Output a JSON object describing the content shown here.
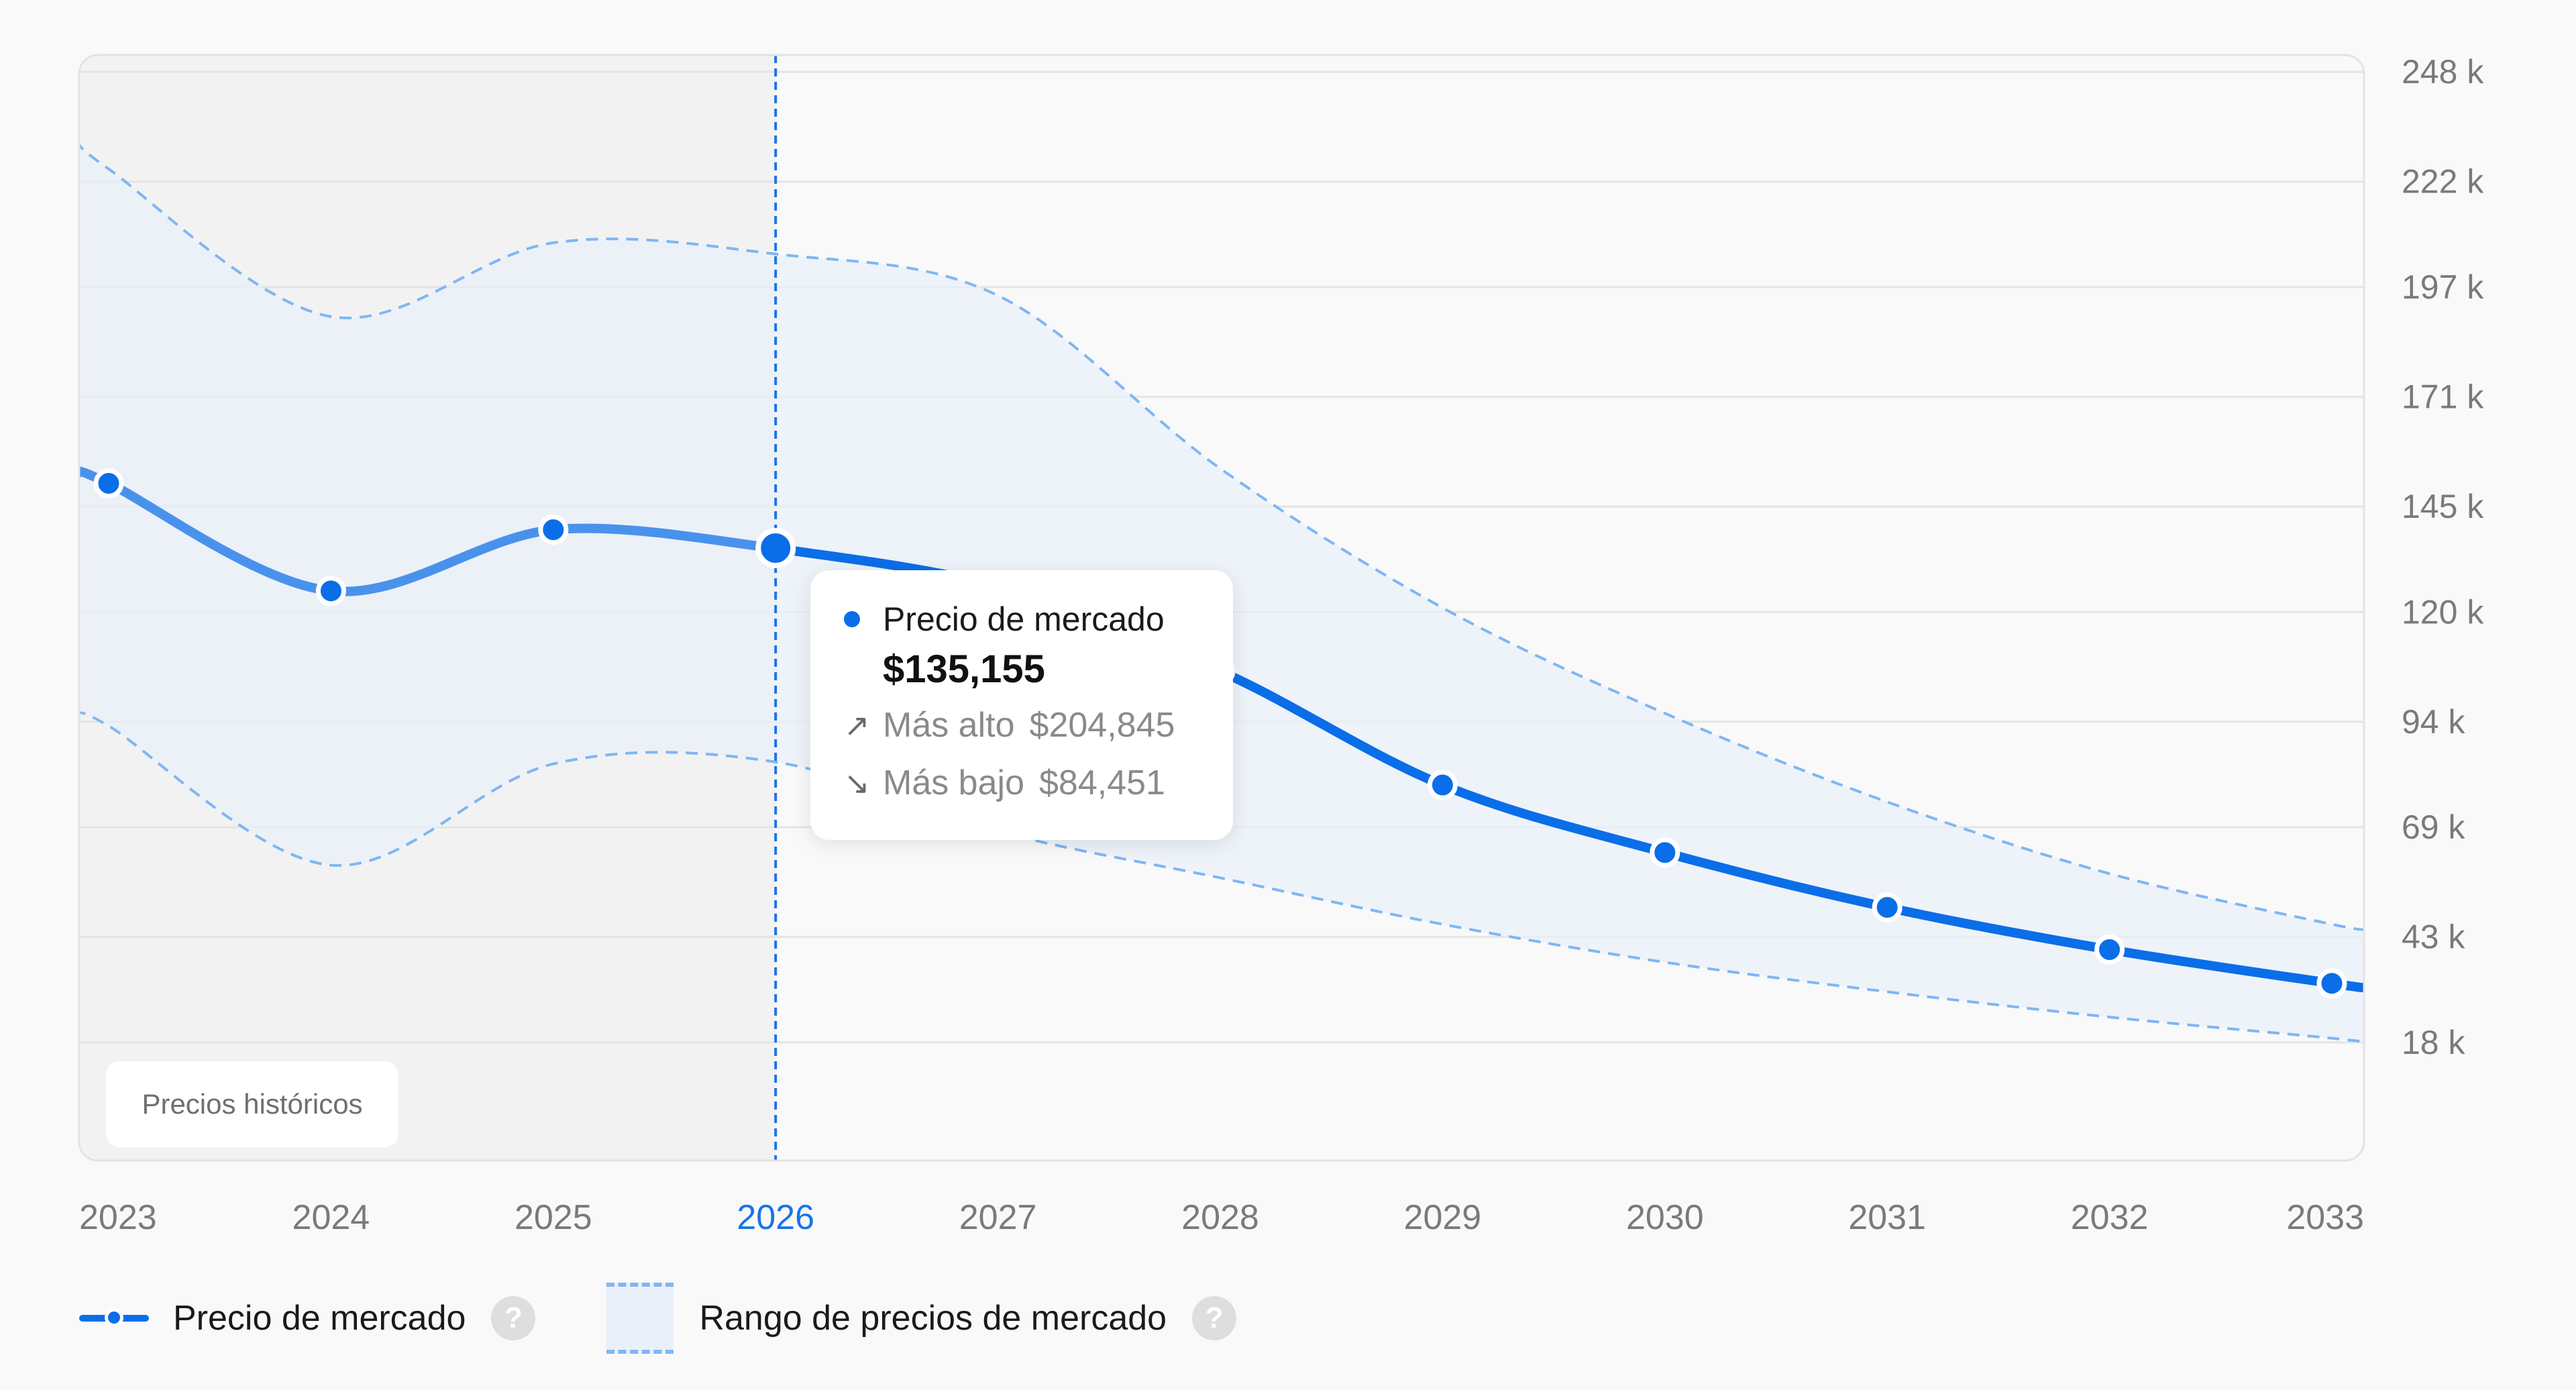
{
  "chart_data": {
    "type": "line",
    "x": [
      2023,
      2024,
      2025,
      2026,
      2027,
      2028,
      2029,
      2030,
      2031,
      2032,
      2033
    ],
    "x_tick_labels": [
      "2023",
      "2024",
      "2025",
      "2026",
      "2027",
      "2028",
      "2029",
      "2030",
      "2031",
      "2032",
      "2033"
    ],
    "y_tick_values": [
      248000,
      222000,
      197000,
      171000,
      145000,
      120000,
      94000,
      69000,
      43000,
      18000
    ],
    "y_tick_labels": [
      "248 k",
      "222 k",
      "197 k",
      "171 k",
      "145 k",
      "120 k",
      "94 k",
      "69 k",
      "43 k",
      "18 k"
    ],
    "ylim": [
      -10000,
      252000
    ],
    "series": [
      {
        "name": "Precio de mercado",
        "color": "#0a6ee8",
        "values": [
          150500,
          125000,
          139500,
          135155,
          126000,
          106000,
          79000,
          63000,
          50000,
          40000,
          32000
        ]
      }
    ],
    "range": {
      "name": "Rango de precios de mercado",
      "color": "#7fb6f3",
      "fill": "#e9f0fa",
      "high": [
        225000,
        190000,
        207500,
        204845,
        195000,
        154000,
        121000,
        96000,
        75000,
        58000,
        46000
      ],
      "low": [
        93000,
        60000,
        84000,
        84451,
        68000,
        57000,
        46000,
        37000,
        30000,
        24000,
        19000
      ]
    },
    "left_edge": {
      "x": 2022.86,
      "value": 153000,
      "high": 232000,
      "low": 95000
    },
    "right_edge": {
      "x": 2033.15,
      "value": 31000,
      "high": 45000,
      "low": 18000
    },
    "highlight_x": 2026,
    "history_end_x": 2026,
    "grid": true,
    "legend_position": "bottom-left",
    "history_label": "Precios históricos",
    "tooltip": {
      "series_label": "Precio de mercado",
      "value": "$135,155",
      "high_label": "Más alto",
      "high_value": "$204,845",
      "low_label": "Más bajo",
      "low_value": "$84,451",
      "high_icon": "arrow-up-right-icon",
      "low_icon": "arrow-down-right-icon"
    },
    "colors": {
      "highlight": "#1a73e8",
      "history_area": "#f2f2f2",
      "grid": "#e4e4e4",
      "tick_text": "#7a7a7a"
    }
  },
  "legend": {
    "line_label": "Precio de mercado",
    "range_label": "Rango de precios de mercado",
    "help_glyph": "?",
    "help_icon": "question-circle-icon"
  }
}
